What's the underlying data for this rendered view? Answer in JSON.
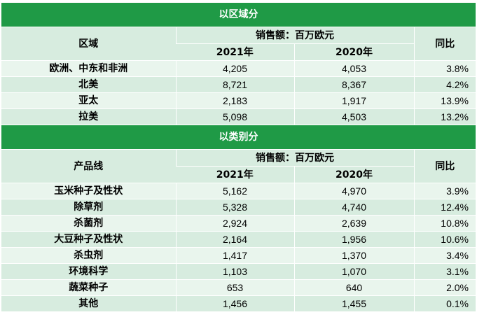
{
  "region_section": {
    "title": "以区域分",
    "header": {
      "dim": "区域",
      "sales": "销售额：百万欧元",
      "y2021": "2021年",
      "y2020": "2020年",
      "yoy": "同比"
    },
    "rows": [
      {
        "name": "欧洲、中东和非洲",
        "v2021": "4,205",
        "v2020": "4,053",
        "yoy": "3.8%"
      },
      {
        "name": "北美",
        "v2021": "8,721",
        "v2020": "8,367",
        "yoy": "4.2%"
      },
      {
        "name": "亚太",
        "v2021": "2,183",
        "v2020": "1,917",
        "yoy": "13.9%"
      },
      {
        "name": "拉美",
        "v2021": "5,098",
        "v2020": "4,503",
        "yoy": "13.2%"
      }
    ]
  },
  "category_section": {
    "title": "以类别分",
    "header": {
      "dim": "产品线",
      "sales": "销售额：百万欧元",
      "y2021": "2021年",
      "y2020": "2020年",
      "yoy": "同比"
    },
    "rows": [
      {
        "name": "玉米种子及性状",
        "v2021": "5,162",
        "v2020": "4,970",
        "yoy": "3.9%"
      },
      {
        "name": "除草剂",
        "v2021": "5,328",
        "v2020": "4,740",
        "yoy": "12.4%"
      },
      {
        "name": "杀菌剂",
        "v2021": "2,924",
        "v2020": "2,639",
        "yoy": "10.8%"
      },
      {
        "name": "大豆种子及性状",
        "v2021": "2,164",
        "v2020": "1,956",
        "yoy": "10.6%"
      },
      {
        "name": "杀虫剂",
        "v2021": "1,417",
        "v2020": "1,370",
        "yoy": "3.4%"
      },
      {
        "name": "环境科学",
        "v2021": "1,103",
        "v2020": "1,070",
        "yoy": "3.1%"
      },
      {
        "name": "蔬菜种子",
        "v2021": "653",
        "v2020": "640",
        "yoy": "2.0%"
      },
      {
        "name": "其他",
        "v2021": "1,456",
        "v2020": "1,455",
        "yoy": "0.1%"
      }
    ]
  },
  "colors": {
    "title_bar": "#1f9a46",
    "header_bg": "#d7ecdf",
    "row_light": "#e9f5ed",
    "row_dark": "#d7ecdf"
  }
}
